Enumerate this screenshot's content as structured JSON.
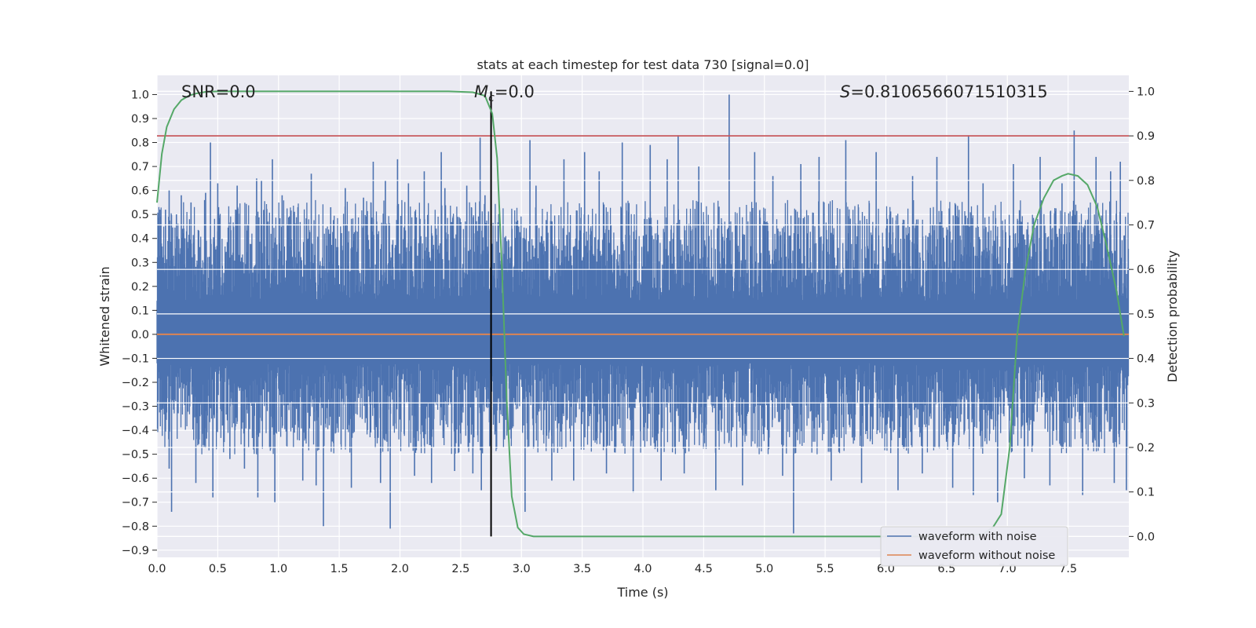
{
  "chart_data": {
    "type": "line",
    "title": "stats at each timestep for test data 730 [signal=0.0]",
    "xlabel": "Time (s)",
    "ylabel": "Whitened strain",
    "y2label": "Detection probability",
    "xlim": [
      0.0,
      8.0
    ],
    "ylim": [
      -0.93,
      1.08
    ],
    "y2lim": [
      -0.047,
      1.036
    ],
    "xticks": [
      "0.0",
      "0.5",
      "1.0",
      "1.5",
      "2.0",
      "2.5",
      "3.0",
      "3.5",
      "4.0",
      "4.5",
      "5.0",
      "5.5",
      "6.0",
      "6.5",
      "7.0",
      "7.5"
    ],
    "yticks": [
      "1.0",
      "0.9",
      "0.8",
      "0.7",
      "0.6",
      "0.5",
      "0.4",
      "0.3",
      "0.2",
      "0.1",
      "0.0",
      "−0.1",
      "−0.2",
      "−0.3",
      "−0.4",
      "−0.5",
      "−0.6",
      "−0.7",
      "−0.8",
      "−0.9"
    ],
    "y2ticks": [
      "1.0",
      "0.9",
      "0.8",
      "0.7",
      "0.6",
      "0.5",
      "0.4",
      "0.3",
      "0.2",
      "0.1",
      "0.0"
    ],
    "grid": true,
    "legend_position": "bottom-right",
    "annotations": {
      "snr": "SNR=0.0",
      "mc_symbol": "M",
      "mc_sub": "c",
      "mc_value": "=0.0",
      "s_symbol": "S",
      "s_value": "=0.8106566071510315"
    },
    "series": [
      {
        "name": "waveform with noise",
        "color": "#4c72b0",
        "noise_envelope_typical": [
          -0.38,
          0.42
        ],
        "spikes": [
          [
            0.07,
            0.52
          ],
          [
            0.1,
            -0.56
          ],
          [
            0.1,
            0.6
          ],
          [
            0.12,
            -0.74
          ],
          [
            0.16,
            0.5
          ],
          [
            0.2,
            0.58
          ],
          [
            0.28,
            0.55
          ],
          [
            0.32,
            -0.62
          ],
          [
            0.4,
            0.59
          ],
          [
            0.44,
            0.8
          ],
          [
            0.46,
            -0.68
          ],
          [
            0.5,
            0.63
          ],
          [
            0.6,
            -0.52
          ],
          [
            0.66,
            0.62
          ],
          [
            0.72,
            -0.56
          ],
          [
            0.82,
            0.65
          ],
          [
            0.83,
            -0.68
          ],
          [
            0.86,
            0.64
          ],
          [
            0.95,
            0.73
          ],
          [
            0.97,
            -0.7
          ],
          [
            1.03,
            0.58
          ],
          [
            1.16,
            0.53
          ],
          [
            1.2,
            -0.61
          ],
          [
            1.27,
            0.67
          ],
          [
            1.31,
            -0.63
          ],
          [
            1.37,
            -0.8
          ],
          [
            1.43,
            0.53
          ],
          [
            1.55,
            0.61
          ],
          [
            1.6,
            -0.64
          ],
          [
            1.7,
            0.57
          ],
          [
            1.78,
            0.72
          ],
          [
            1.84,
            -0.62
          ],
          [
            1.88,
            0.64
          ],
          [
            1.92,
            -0.81
          ],
          [
            1.98,
            0.73
          ],
          [
            2.07,
            0.63
          ],
          [
            2.12,
            -0.59
          ],
          [
            2.2,
            0.68
          ],
          [
            2.26,
            -0.62
          ],
          [
            2.34,
            0.76
          ],
          [
            2.37,
            0.61
          ],
          [
            2.45,
            -0.57
          ],
          [
            2.55,
            0.62
          ],
          [
            2.6,
            -0.58
          ],
          [
            2.66,
            0.82
          ],
          [
            2.67,
            -0.65
          ],
          [
            2.7,
            0.58
          ],
          [
            3.03,
            -0.74
          ],
          [
            3.07,
            0.81
          ],
          [
            3.12,
            0.62
          ],
          [
            3.25,
            -0.61
          ],
          [
            3.35,
            0.73
          ],
          [
            3.43,
            -0.61
          ],
          [
            3.52,
            0.76
          ],
          [
            3.64,
            0.68
          ],
          [
            3.7,
            -0.58
          ],
          [
            3.83,
            0.8
          ],
          [
            3.92,
            -0.66
          ],
          [
            4.06,
            0.79
          ],
          [
            4.15,
            -0.61
          ],
          [
            4.2,
            0.73
          ],
          [
            4.29,
            0.83
          ],
          [
            4.34,
            -0.58
          ],
          [
            4.46,
            0.7
          ],
          [
            4.6,
            -0.65
          ],
          [
            4.71,
            1.0
          ],
          [
            4.82,
            -0.63
          ],
          [
            4.92,
            0.76
          ],
          [
            5.07,
            0.66
          ],
          [
            5.15,
            -0.59
          ],
          [
            5.24,
            -0.83
          ],
          [
            5.3,
            0.71
          ],
          [
            5.45,
            0.74
          ],
          [
            5.55,
            -0.61
          ],
          [
            5.67,
            0.81
          ],
          [
            5.8,
            -0.62
          ],
          [
            5.92,
            0.76
          ],
          [
            6.1,
            -0.65
          ],
          [
            6.22,
            0.66
          ],
          [
            6.3,
            -0.58
          ],
          [
            6.42,
            0.74
          ],
          [
            6.55,
            -0.64
          ],
          [
            6.68,
            0.83
          ],
          [
            6.72,
            -0.67
          ],
          [
            6.8,
            0.63
          ],
          [
            6.92,
            -0.7
          ],
          [
            7.05,
            0.71
          ],
          [
            7.14,
            -0.6
          ],
          [
            7.27,
            0.74
          ],
          [
            7.35,
            -0.63
          ],
          [
            7.45,
            0.63
          ],
          [
            7.55,
            0.85
          ],
          [
            7.62,
            -0.67
          ],
          [
            7.73,
            0.74
          ],
          [
            7.85,
            0.68
          ],
          [
            7.88,
            -0.62
          ],
          [
            7.93,
            0.72
          ],
          [
            7.98,
            -0.65
          ]
        ]
      },
      {
        "name": "waveform without noise",
        "color": "#dd8452",
        "value": 0.0
      }
    ],
    "detection_probability": {
      "name": "",
      "color": "#55a868",
      "x": [
        0.0,
        0.04,
        0.08,
        0.14,
        0.2,
        0.26,
        0.32,
        0.4,
        0.5,
        1.0,
        1.5,
        2.0,
        2.4,
        2.6,
        2.7,
        2.76,
        2.8,
        2.84,
        2.88,
        2.92,
        2.97,
        3.02,
        3.1,
        3.3,
        4.0,
        5.0,
        6.0,
        6.5,
        6.8,
        6.88,
        6.95,
        7.02,
        7.08,
        7.15,
        7.22,
        7.3,
        7.38,
        7.45,
        7.5,
        7.58,
        7.66,
        7.74,
        7.82,
        7.9,
        7.96
      ],
      "y": [
        0.75,
        0.86,
        0.92,
        0.96,
        0.98,
        0.99,
        0.995,
        0.999,
        1.0,
        1.0,
        1.0,
        1.0,
        1.0,
        0.998,
        0.99,
        0.95,
        0.85,
        0.6,
        0.3,
        0.09,
        0.02,
        0.005,
        0.0,
        0.0,
        0.0,
        0.0,
        0.0,
        0.0,
        0.005,
        0.02,
        0.05,
        0.2,
        0.45,
        0.6,
        0.7,
        0.76,
        0.8,
        0.81,
        0.815,
        0.81,
        0.79,
        0.74,
        0.65,
        0.55,
        0.45
      ]
    },
    "threshold": {
      "value": 0.9,
      "color": "#c44e52"
    },
    "marker_time": {
      "value": 2.75,
      "color": "#000000"
    },
    "legend": [
      "waveform with noise",
      "waveform without noise"
    ]
  }
}
